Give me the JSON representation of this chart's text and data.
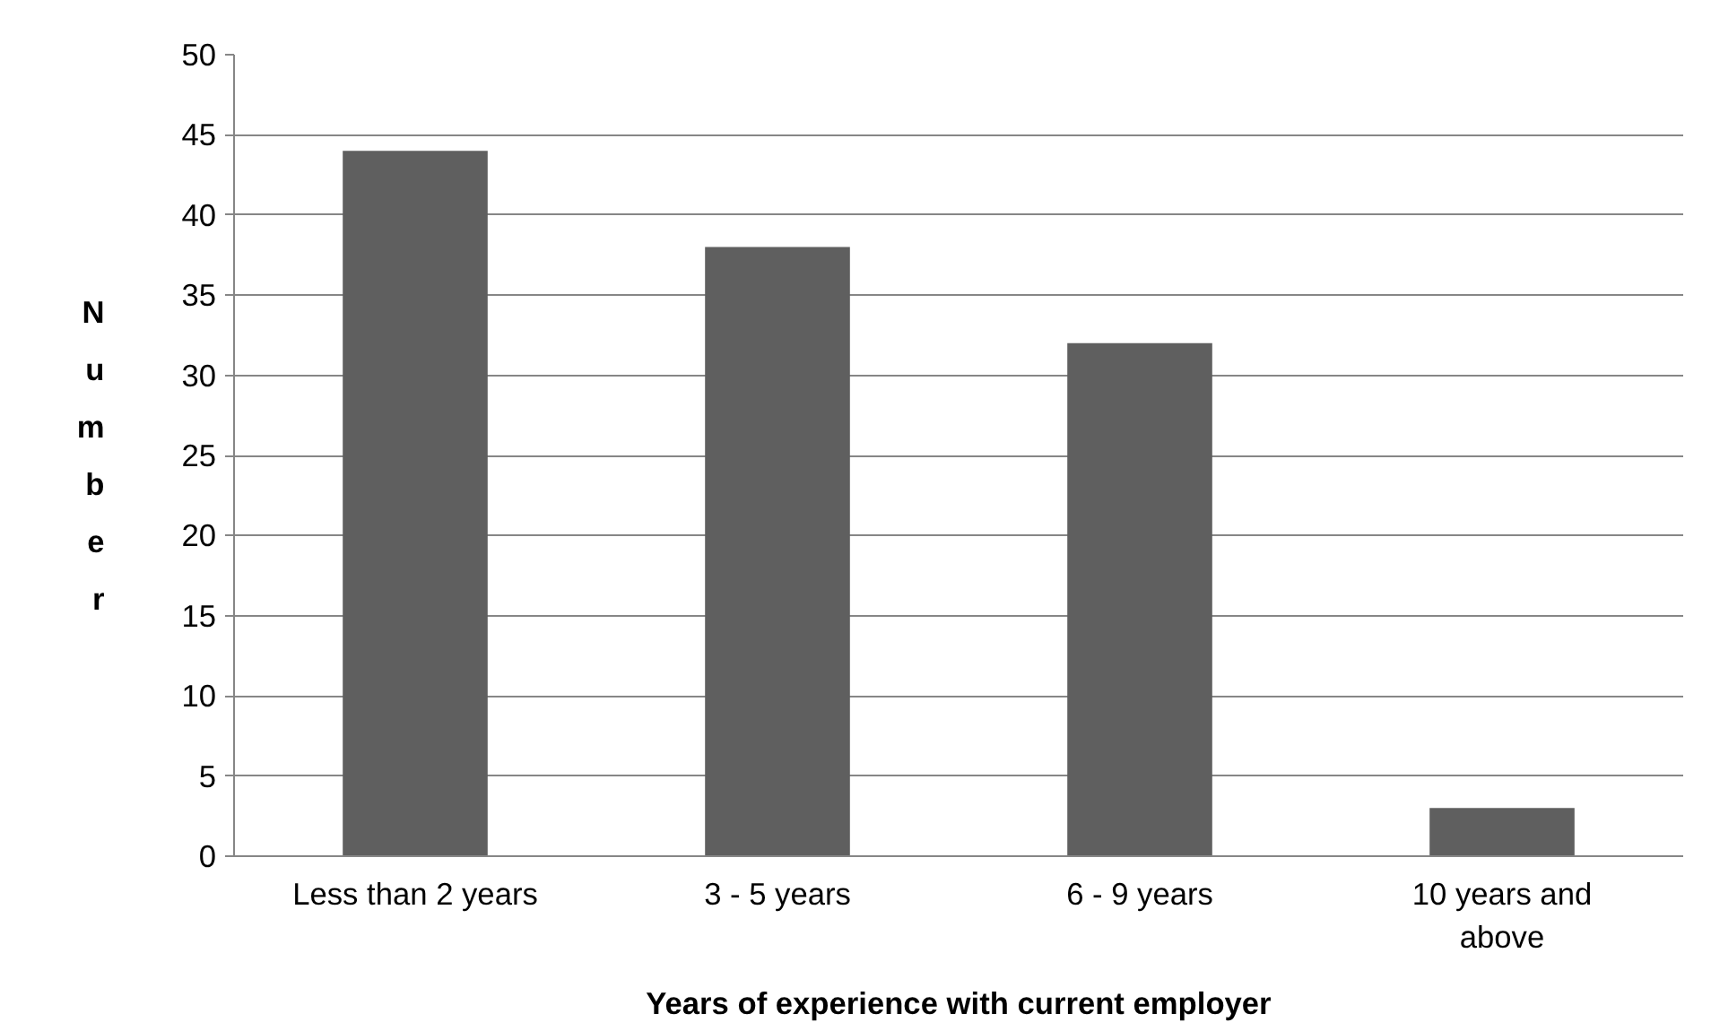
{
  "chart_data": {
    "type": "bar",
    "xlabel": "Years of experience with current employer",
    "ylabel": "Number",
    "categories": [
      "Less than 2 years",
      "3 - 5 years",
      "6 - 9 years",
      "10 years and above"
    ],
    "values": [
      44,
      38,
      32,
      3
    ],
    "color": "#5f5f5f",
    "ylim": [
      0,
      50
    ],
    "yticks": [
      0,
      5,
      10,
      15,
      20,
      25,
      30,
      35,
      40,
      45,
      50
    ],
    "grid": "y"
  }
}
